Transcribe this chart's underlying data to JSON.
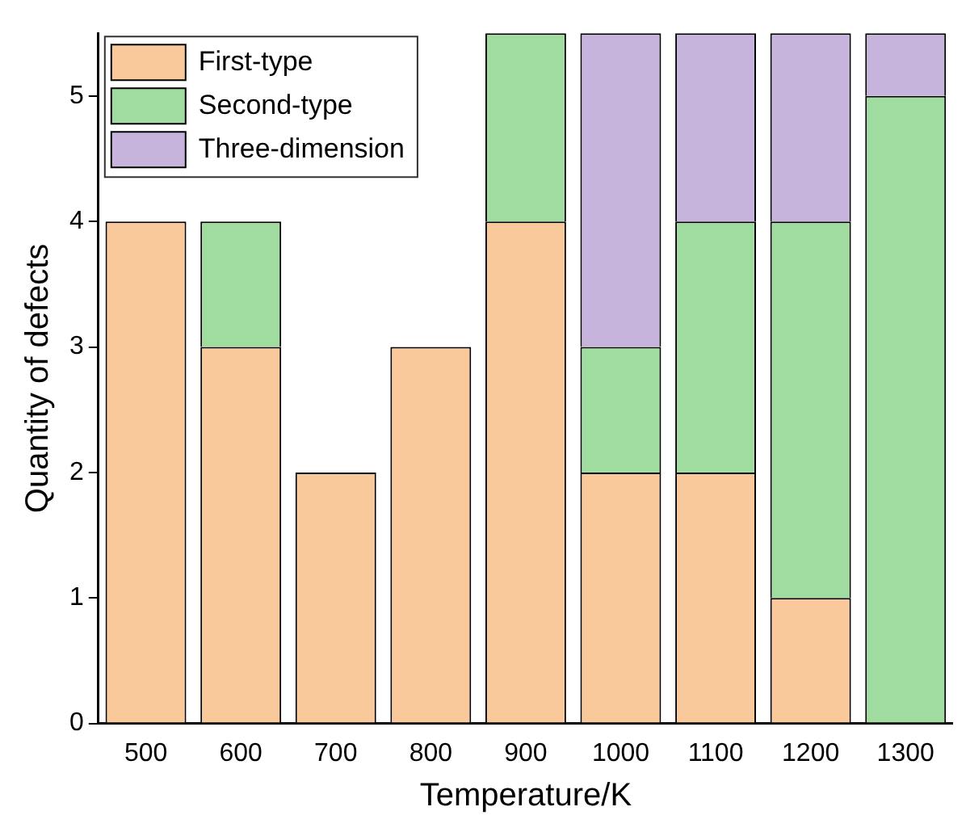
{
  "chart_data": {
    "type": "bar",
    "stacked": true,
    "xlabel": "Temperature/K",
    "ylabel": "Quantity of defects",
    "categories": [
      "500",
      "600",
      "700",
      "800",
      "900",
      "1000",
      "1100",
      "1200",
      "1300"
    ],
    "series": [
      {
        "name": "First-type",
        "color": "#f9c89b",
        "values": [
          4,
          3,
          2,
          3,
          4,
          2,
          2,
          1,
          0
        ]
      },
      {
        "name": "Second-type",
        "color": "#a0dba0",
        "values": [
          0,
          1,
          0,
          0,
          1.5,
          1,
          2,
          3,
          5
        ]
      },
      {
        "name": "Three-dimension",
        "color": "#c6b4dc",
        "values": [
          0,
          0,
          0,
          0,
          0,
          2.5,
          1.5,
          1.5,
          0.5
        ]
      }
    ],
    "ylim": [
      0,
      5.5
    ],
    "yticks": [
      0,
      1,
      2,
      3,
      4,
      5
    ],
    "grid": false,
    "legend": "top left"
  }
}
